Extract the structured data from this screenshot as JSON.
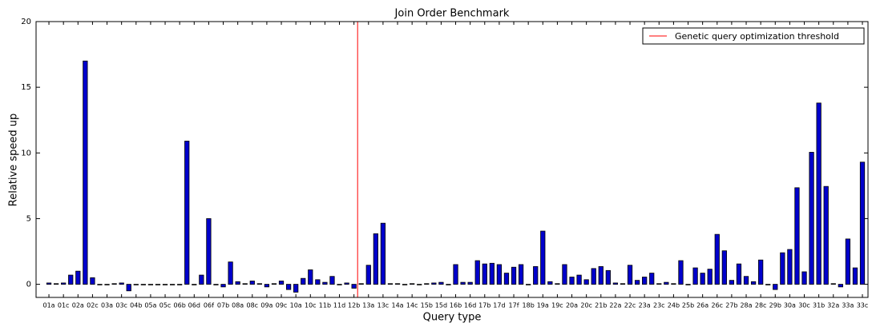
{
  "chart_data": {
    "type": "bar",
    "title": "Join Order Benchmark",
    "x_label": "Query type",
    "y_label": "Relative speed up",
    "categories": [
      "01a",
      null,
      "01c",
      null,
      "02a",
      null,
      "02c",
      null,
      "03a",
      null,
      "03c",
      null,
      "04b",
      null,
      "05a",
      null,
      "05c",
      null,
      "06b",
      null,
      "06d",
      null,
      "06f",
      null,
      "07b",
      null,
      "08a",
      null,
      "08c",
      null,
      "09a",
      null,
      "09c",
      null,
      "10a",
      null,
      "10c",
      null,
      "11b",
      null,
      "11d",
      null,
      "12b",
      null,
      "13a",
      null,
      "13c",
      null,
      "14a",
      null,
      "14c",
      null,
      "15b",
      null,
      "15d",
      null,
      "16b",
      null,
      "16d",
      null,
      "17b",
      null,
      "17d",
      null,
      "17f",
      null,
      "18b",
      null,
      "19a",
      null,
      "19c",
      null,
      "20a",
      null,
      "20c",
      null,
      "21b",
      null,
      "22a",
      null,
      "22c",
      null,
      "23a",
      null,
      "23c",
      null,
      "24b",
      null,
      "25b",
      null,
      "26a",
      null,
      "26c",
      null,
      "27b",
      null,
      "28a",
      null,
      "28c",
      null,
      "29b",
      null,
      "30a",
      null,
      "30c",
      null,
      "31b",
      null,
      "32a",
      null,
      "33a",
      null,
      "33c"
    ],
    "values": [
      0.1,
      0.05,
      0.1,
      0.7,
      1.0,
      17.0,
      0.5,
      0.0,
      0.0,
      0.05,
      0.1,
      -0.5,
      0.0,
      0.0,
      0.0,
      0.0,
      0.0,
      0.0,
      0.0,
      10.9,
      0.0,
      0.7,
      5.0,
      -0.05,
      -0.2,
      1.7,
      0.2,
      0.05,
      0.25,
      0.05,
      -0.2,
      0.05,
      0.25,
      -0.4,
      -0.6,
      0.45,
      1.1,
      0.35,
      0.15,
      0.6,
      0.0,
      0.1,
      -0.3,
      0.05,
      1.45,
      3.85,
      4.65,
      0.05,
      0.05,
      0.0,
      0.05,
      0.0,
      0.05,
      0.1,
      0.15,
      0.0,
      1.5,
      0.15,
      0.15,
      1.8,
      1.55,
      1.6,
      1.5,
      0.85,
      1.3,
      1.5,
      0.0,
      1.35,
      4.05,
      0.2,
      0.05,
      1.5,
      0.55,
      0.7,
      0.35,
      1.2,
      1.35,
      1.05,
      0.1,
      0.05,
      1.45,
      0.3,
      0.55,
      0.85,
      0.05,
      0.15,
      0.05,
      1.8,
      0.0,
      1.25,
      0.85,
      1.15,
      3.8,
      2.55,
      0.3,
      1.55,
      0.6,
      0.2,
      1.85,
      -0.05,
      -0.4,
      2.4,
      2.65,
      7.35,
      0.95,
      10.05,
      13.8,
      7.45,
      0.05,
      -0.2,
      3.45,
      1.25,
      9.3
    ],
    "color": "#0000cc",
    "ylim": [
      -1,
      20
    ],
    "yticks": [
      0,
      5,
      10,
      15,
      20
    ],
    "vline": {
      "label": "Genetic query optimization threshold",
      "color": "#ff0000",
      "x": 43
    },
    "legend": "upper right"
  }
}
